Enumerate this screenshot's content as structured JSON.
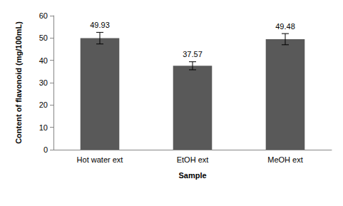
{
  "chart_data": {
    "type": "bar",
    "x_label": "Sample",
    "y_label": "Content of flavonoid (mg/100mL)",
    "categories": [
      "Hot water ext",
      "EtOH ext",
      "MeOH ext"
    ],
    "values": [
      49.93,
      37.57,
      49.48
    ],
    "errors": [
      2.6,
      1.8,
      2.5
    ],
    "color": "#595959",
    "ylim": [
      0,
      60
    ],
    "yticks": [
      0,
      10,
      20,
      30,
      40,
      50,
      60
    ],
    "grid": false,
    "data_labels": true
  }
}
